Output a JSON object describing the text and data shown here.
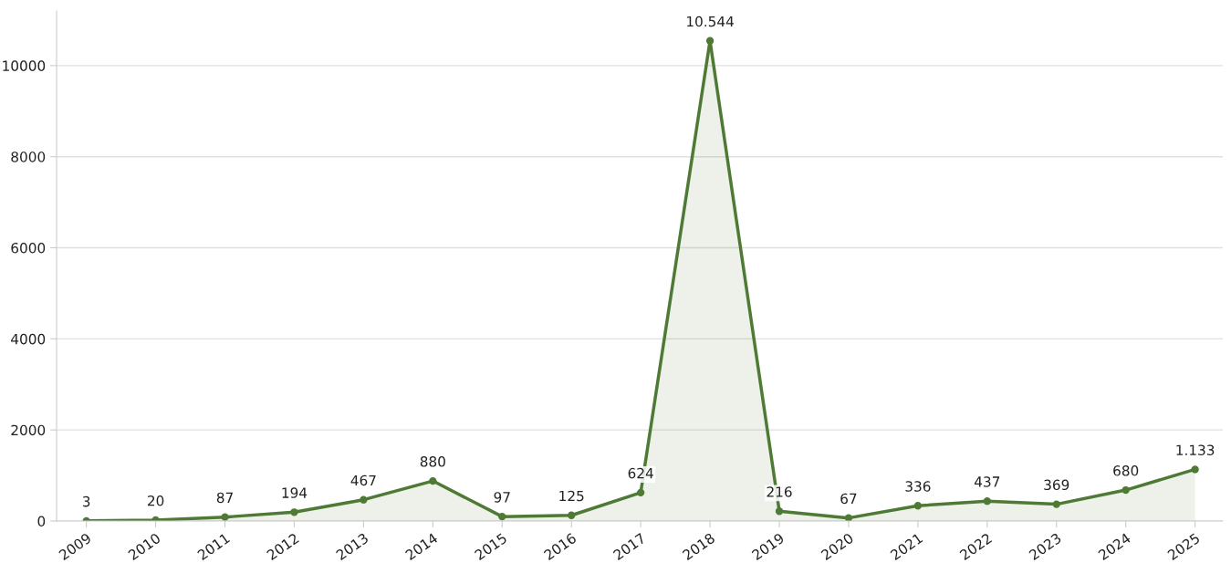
{
  "chart_data": {
    "type": "area",
    "categories": [
      "2009",
      "2010",
      "2011",
      "2012",
      "2013",
      "2014",
      "2015",
      "2016",
      "2017",
      "2018",
      "2019",
      "2020",
      "2021",
      "2022",
      "2023",
      "2024",
      "2025"
    ],
    "series": [
      {
        "color": "#4e7a35",
        "values": [
          3,
          20,
          87,
          194,
          467,
          880,
          97,
          125,
          624,
          10544,
          216,
          67,
          336,
          437,
          369,
          680,
          1133
        ],
        "value_labels": [
          "3",
          "20",
          "87",
          "194",
          "467",
          "880",
          "97",
          "125",
          "624",
          "10.544",
          "216",
          "67",
          "336",
          "437",
          "369",
          "680",
          "1.133"
        ]
      }
    ],
    "ylim": [
      0,
      11200
    ],
    "yticks": [
      0,
      2000,
      4000,
      6000,
      8000,
      10000
    ],
    "grid": "y",
    "marker": "circle",
    "line_style": "solid"
  }
}
